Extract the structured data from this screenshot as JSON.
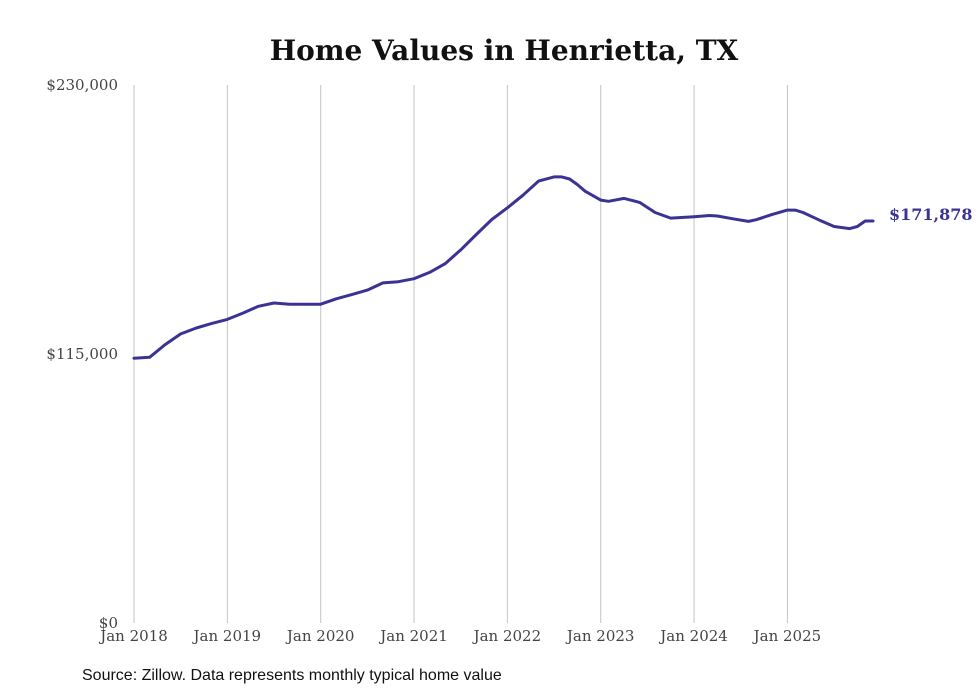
{
  "chart_data": {
    "type": "line",
    "title": "Home Values in Henrietta, TX",
    "xlabel": "",
    "ylabel": "",
    "ylim": [
      0,
      230000
    ],
    "yticks": [
      0,
      115000,
      230000
    ],
    "ytick_labels": [
      "$0",
      "$115,000",
      "$230,000"
    ],
    "xticks": [
      2018,
      2019,
      2020,
      2021,
      2022,
      2023,
      2024,
      2025
    ],
    "xtick_labels": [
      "Jan 2018",
      "Jan 2019",
      "Jan 2020",
      "Jan 2021",
      "Jan 2022",
      "Jan 2023",
      "Jan 2024",
      "Jan 2025"
    ],
    "xlim": [
      2018,
      2025.917
    ],
    "grid": "vertical",
    "series": [
      {
        "name": "Typical home value",
        "color": "#3b3394",
        "end_label": "$171,878",
        "x": [
          2018.0,
          2018.167,
          2018.333,
          2018.5,
          2018.667,
          2018.833,
          2019.0,
          2019.167,
          2019.333,
          2019.5,
          2019.667,
          2019.833,
          2020.0,
          2020.167,
          2020.333,
          2020.5,
          2020.667,
          2020.833,
          2021.0,
          2021.167,
          2021.333,
          2021.5,
          2021.667,
          2021.833,
          2022.0,
          2022.167,
          2022.333,
          2022.5,
          2022.583,
          2022.667,
          2022.75,
          2022.833,
          2023.0,
          2023.083,
          2023.25,
          2023.417,
          2023.583,
          2023.75,
          2024.0,
          2024.167,
          2024.25,
          2024.417,
          2024.583,
          2024.667,
          2024.833,
          2025.0,
          2025.083,
          2025.167,
          2025.333,
          2025.5,
          2025.667,
          2025.75,
          2025.833,
          2025.917
        ],
        "values": [
          113200,
          113600,
          119000,
          123600,
          126100,
          128100,
          129800,
          132500,
          135400,
          136800,
          136300,
          136300,
          136300,
          138600,
          140400,
          142300,
          145400,
          145900,
          147200,
          149900,
          153600,
          159500,
          166100,
          172500,
          177500,
          182900,
          188900,
          190700,
          190700,
          189800,
          187400,
          184600,
          180800,
          180300,
          181500,
          179800,
          175500,
          173100,
          173700,
          174200,
          174000,
          172800,
          171700,
          172400,
          174600,
          176500,
          176500,
          175500,
          172400,
          169500,
          168600,
          169500,
          171878,
          171878
        ]
      }
    ]
  },
  "source_note": "Source: Zillow. Data represents monthly typical home value"
}
